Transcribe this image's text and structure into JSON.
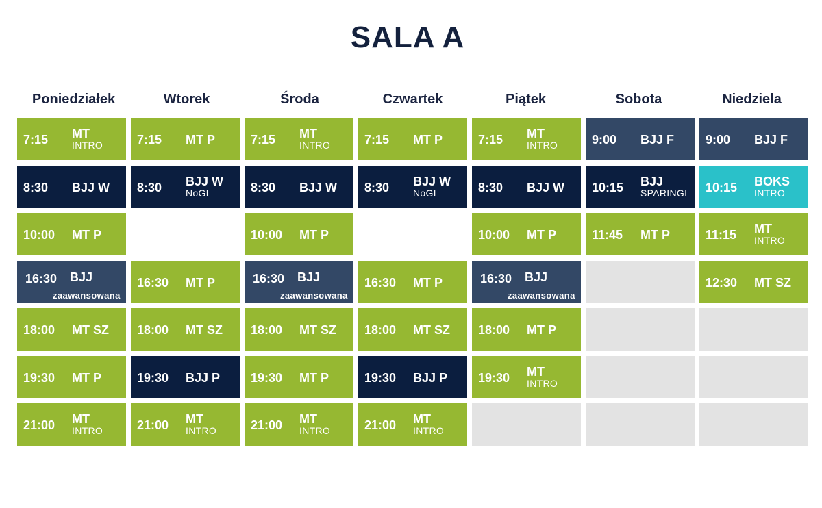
{
  "title": "SALA A",
  "days": [
    "Poniedziałek",
    "Wtorek",
    "Środa",
    "Czwartek",
    "Piątek",
    "Sobota",
    "Niedziela"
  ],
  "colors": {
    "green": "#96b832",
    "navy": "#0b1e3f",
    "slate": "#334866",
    "teal": "#2ac1c9",
    "empty": "#e3e3e3",
    "title": "#14213d"
  },
  "rows": [
    [
      {
        "time": "7:15",
        "line1": "MT",
        "line2": "INTRO",
        "color": "green"
      },
      {
        "time": "7:15",
        "line1": "MT P",
        "line2": "",
        "color": "green"
      },
      {
        "time": "7:15",
        "line1": "MT",
        "line2": "INTRO",
        "color": "green"
      },
      {
        "time": "7:15",
        "line1": "MT P",
        "line2": "",
        "color": "green"
      },
      {
        "time": "7:15",
        "line1": "MT",
        "line2": "INTRO",
        "color": "green"
      },
      {
        "time": "9:00",
        "line1": "BJJ F",
        "line2": "",
        "color": "slate"
      },
      {
        "time": "9:00",
        "line1": "BJJ F",
        "line2": "",
        "color": "slate"
      }
    ],
    [
      {
        "time": "8:30",
        "line1": "BJJ W",
        "line2": "",
        "color": "navy"
      },
      {
        "time": "8:30",
        "line1": "BJJ W",
        "line2": "NoGI",
        "color": "navy"
      },
      {
        "time": "8:30",
        "line1": "BJJ W",
        "line2": "",
        "color": "navy"
      },
      {
        "time": "8:30",
        "line1": "BJJ W",
        "line2": "NoGI",
        "color": "navy"
      },
      {
        "time": "8:30",
        "line1": "BJJ W",
        "line2": "",
        "color": "navy"
      },
      {
        "time": "10:15",
        "line1": "BJJ",
        "line2": "SPARINGI",
        "color": "navy"
      },
      {
        "time": "10:15",
        "line1": "BOKS",
        "line2": "INTRO",
        "color": "teal"
      }
    ],
    [
      {
        "time": "10:00",
        "line1": "MT P",
        "line2": "",
        "color": "green"
      },
      {
        "time": "",
        "line1": "",
        "line2": "",
        "color": "white"
      },
      {
        "time": "10:00",
        "line1": "MT P",
        "line2": "",
        "color": "green"
      },
      {
        "time": "",
        "line1": "",
        "line2": "",
        "color": "white"
      },
      {
        "time": "10:00",
        "line1": "MT P",
        "line2": "",
        "color": "green"
      },
      {
        "time": "11:45",
        "line1": "MT P",
        "line2": "",
        "color": "green"
      },
      {
        "time": "11:15",
        "line1": "MT",
        "line2": "INTRO",
        "color": "green"
      }
    ],
    [
      {
        "time": "16:30",
        "line1": "BJJ",
        "line2": "zaawansowana",
        "color": "slate",
        "style": "zaw"
      },
      {
        "time": "16:30",
        "line1": "MT P",
        "line2": "",
        "color": "green"
      },
      {
        "time": "16:30",
        "line1": "BJJ",
        "line2": "zaawansowana",
        "color": "slate",
        "style": "zaw"
      },
      {
        "time": "16:30",
        "line1": "MT P",
        "line2": "",
        "color": "green"
      },
      {
        "time": "16:30",
        "line1": "BJJ",
        "line2": "zaawansowana",
        "color": "slate",
        "style": "zaw"
      },
      {
        "time": "",
        "line1": "",
        "line2": "",
        "color": "grey"
      },
      {
        "time": "12:30",
        "line1": "MT SZ",
        "line2": "",
        "color": "green"
      }
    ],
    [
      {
        "time": "18:00",
        "line1": "MT SZ",
        "line2": "",
        "color": "green"
      },
      {
        "time": "18:00",
        "line1": "MT SZ",
        "line2": "",
        "color": "green"
      },
      {
        "time": "18:00",
        "line1": "MT SZ",
        "line2": "",
        "color": "green"
      },
      {
        "time": "18:00",
        "line1": "MT SZ",
        "line2": "",
        "color": "green"
      },
      {
        "time": "18:00",
        "line1": "MT P",
        "line2": "",
        "color": "green"
      },
      {
        "time": "",
        "line1": "",
        "line2": "",
        "color": "grey"
      },
      {
        "time": "",
        "line1": "",
        "line2": "",
        "color": "grey"
      }
    ],
    [
      {
        "time": "19:30",
        "line1": "MT P",
        "line2": "",
        "color": "green"
      },
      {
        "time": "19:30",
        "line1": "BJJ P",
        "line2": "",
        "color": "navy"
      },
      {
        "time": "19:30",
        "line1": "MT P",
        "line2": "",
        "color": "green"
      },
      {
        "time": "19:30",
        "line1": "BJJ P",
        "line2": "",
        "color": "navy"
      },
      {
        "time": "19:30",
        "line1": "MT",
        "line2": "INTRO",
        "color": "green"
      },
      {
        "time": "",
        "line1": "",
        "line2": "",
        "color": "grey"
      },
      {
        "time": "",
        "line1": "",
        "line2": "",
        "color": "grey"
      }
    ],
    [
      {
        "time": "21:00",
        "line1": "MT",
        "line2": "INTRO",
        "color": "green"
      },
      {
        "time": "21:00",
        "line1": "MT",
        "line2": "INTRO",
        "color": "green"
      },
      {
        "time": "21:00",
        "line1": "MT",
        "line2": "INTRO",
        "color": "green"
      },
      {
        "time": "21:00",
        "line1": "MT",
        "line2": "INTRO",
        "color": "green"
      },
      {
        "time": "",
        "line1": "",
        "line2": "",
        "color": "grey"
      },
      {
        "time": "",
        "line1": "",
        "line2": "",
        "color": "grey"
      },
      {
        "time": "",
        "line1": "",
        "line2": "",
        "color": "grey"
      }
    ]
  ]
}
